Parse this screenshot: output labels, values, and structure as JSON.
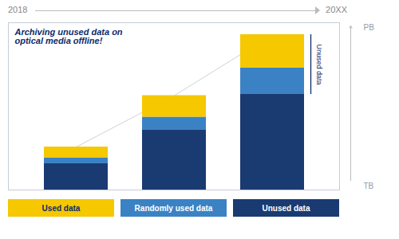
{
  "chart_data": {
    "type": "bar",
    "stacked": true,
    "title": "Archiving unused data on\noptical media offline!",
    "categories": [
      null,
      null,
      null
    ],
    "series": [
      {
        "name": "Unused data",
        "color": "#1A3A72",
        "values": [
          2.2,
          5.0,
          8.0
        ]
      },
      {
        "name": "Randomly used data",
        "color": "#3B82C4",
        "values": [
          0.5,
          1.1,
          2.2
        ]
      },
      {
        "name": "Used data",
        "color": "#F5C800",
        "values": [
          0.9,
          1.8,
          2.8
        ]
      }
    ],
    "ylim": [
      0,
      14
    ],
    "tick_labels": false,
    "grid": false,
    "legend": "bottom",
    "annotations": [
      "2018",
      "20XX",
      "PB",
      "TB",
      "Unused data"
    ]
  }
}
